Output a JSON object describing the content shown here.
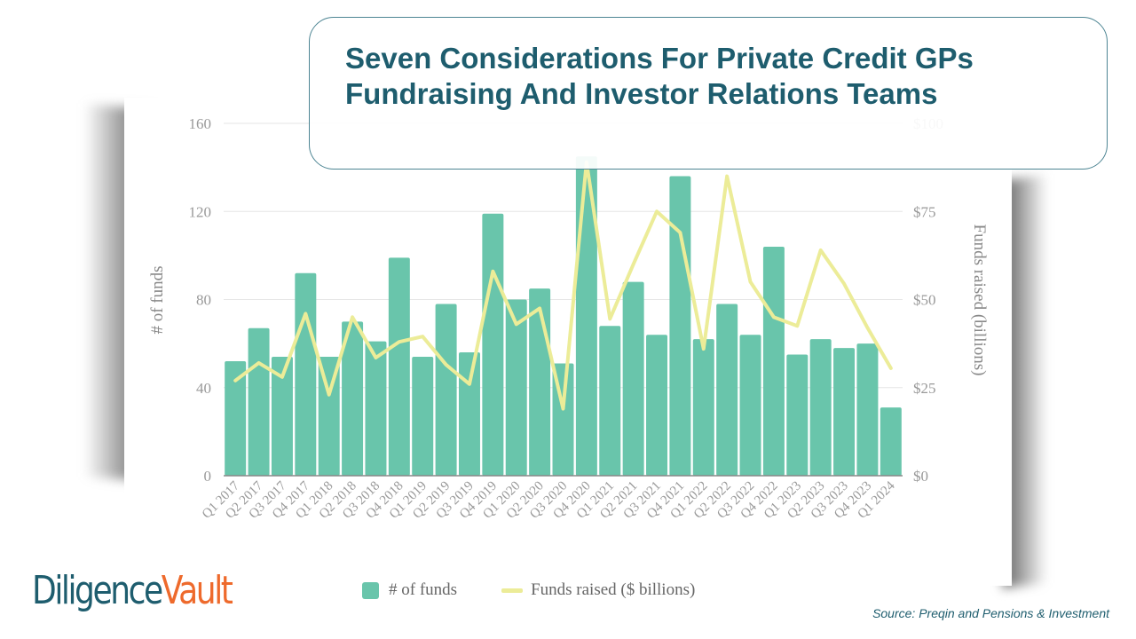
{
  "title": {
    "line1": "Seven Considerations For Private Credit GPs",
    "line2": "Fundraising And Investor Relations Teams"
  },
  "logo": {
    "part1": "Diligence",
    "part2": "Vault"
  },
  "source": "Source: Preqin and Pensions & Investment",
  "colors": {
    "bars": "#69c5ab",
    "line": "#ecec98",
    "title": "#1e5d6e",
    "logo_accent": "#ee6a2c"
  },
  "chart_data": {
    "type": "bar+line",
    "categories": [
      "Q1 2017",
      "Q2 2017",
      "Q3 2017",
      "Q4 2017",
      "Q1 2018",
      "Q2 2018",
      "Q3 2018",
      "Q4 2018",
      "Q1 2019",
      "Q2 2019",
      "Q3 2019",
      "Q4 2019",
      "Q1 2020",
      "Q2 2020",
      "Q3 2020",
      "Q4 2020",
      "Q1 2021",
      "Q2 2021",
      "Q3 2021",
      "Q4 2021",
      "Q1 2022",
      "Q2 2022",
      "Q3 2022",
      "Q4 2022",
      "Q1 2023",
      "Q2 2023",
      "Q3 2023",
      "Q4 2023",
      "Q1 2024"
    ],
    "series": [
      {
        "name": "# of funds",
        "type": "bar",
        "axis": "left",
        "values": [
          52,
          67,
          54,
          92,
          54,
          70,
          61,
          99,
          54,
          78,
          56,
          119,
          80,
          85,
          51,
          145,
          68,
          88,
          64,
          136,
          62,
          78,
          64,
          104,
          55,
          62,
          58,
          60,
          31
        ]
      },
      {
        "name": "Funds raised ($ billions)",
        "type": "line",
        "axis": "right",
        "values": [
          27,
          32,
          28,
          46,
          23,
          45,
          33.5,
          38,
          39.5,
          31.5,
          26,
          58,
          43,
          47.5,
          19,
          89,
          44.5,
          60,
          75,
          69,
          36,
          85,
          55,
          45,
          42.5,
          64,
          54.5,
          42,
          30.5
        ]
      }
    ],
    "ylabel": "# of funds",
    "ylabel_right": "Funds raised (billions)",
    "ylim": [
      0,
      160
    ],
    "ylim_right": [
      0,
      100
    ],
    "yticks": [
      "0",
      "40",
      "80",
      "120",
      "160"
    ],
    "yticks_right": [
      "$0",
      "$25",
      "$50",
      "$75",
      "$100"
    ],
    "grid": true,
    "legend": "bottom"
  }
}
